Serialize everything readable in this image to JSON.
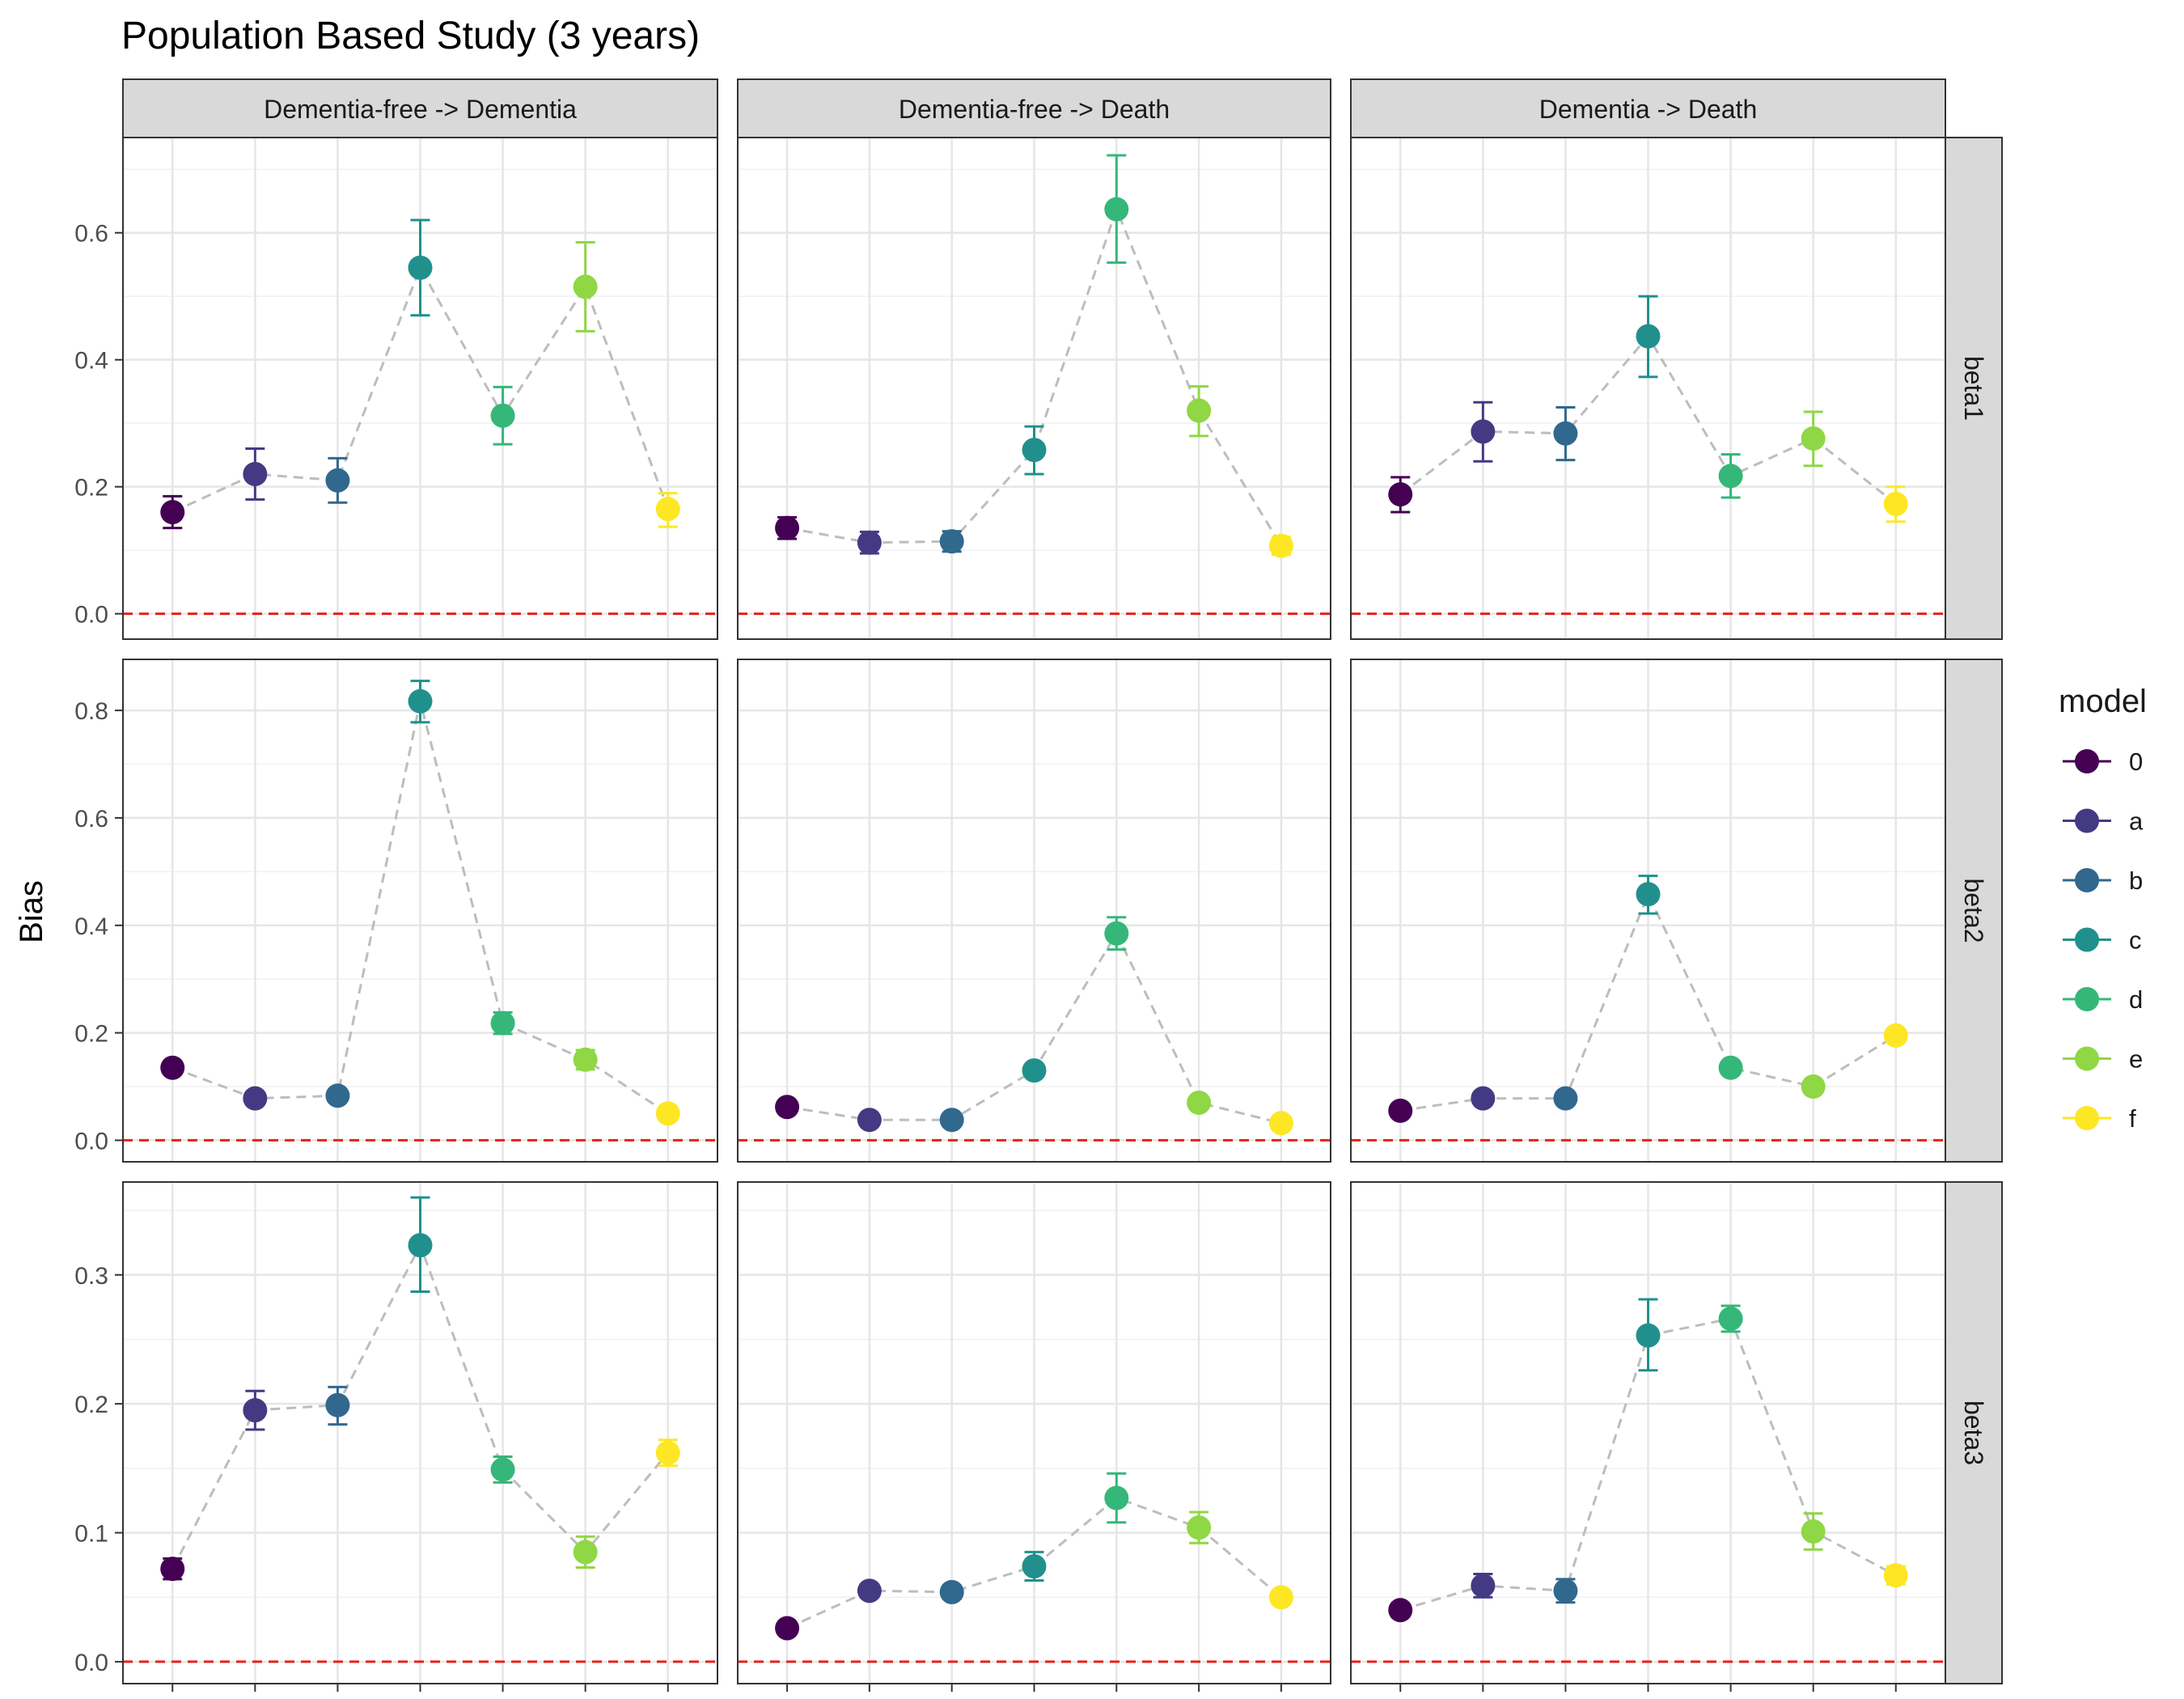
{
  "chart_data": {
    "type": "scatter",
    "title": "Population Based Study (3 years)",
    "ylabel": "Bias",
    "xlabel": "",
    "grid": true,
    "legend_position": "right",
    "legend": {
      "title": "model",
      "entries": [
        "0",
        "a",
        "b",
        "c",
        "d",
        "e",
        "f"
      ]
    },
    "models": [
      "0",
      "a",
      "b",
      "c",
      "d",
      "e",
      "f"
    ],
    "model_colors": {
      "0": "#440154",
      "a": "#443A83",
      "b": "#31688E",
      "c": "#21908C",
      "d": "#35B779",
      "e": "#8FD744",
      "f": "#FDE725"
    },
    "columns": [
      "Dementia-free -> Dementia",
      "Dementia-free -> Death",
      "Dementia -> Death"
    ],
    "rows": [
      {
        "label": "beta1",
        "ylim": [
          -0.04,
          0.75
        ],
        "yticks": [
          0.0,
          0.2,
          0.4,
          0.6
        ],
        "ytick_labels": [
          "0.0",
          "0.2",
          "0.4",
          "0.6"
        ],
        "panels": [
          {
            "values": [
              0.16,
              0.22,
              0.21,
              0.545,
              0.312,
              0.515,
              0.165
            ],
            "lower": [
              0.135,
              0.18,
              0.175,
              0.47,
              0.267,
              0.445,
              0.137
            ],
            "upper": [
              0.185,
              0.26,
              0.245,
              0.62,
              0.357,
              0.585,
              0.19
            ]
          },
          {
            "values": [
              0.135,
              0.112,
              0.114,
              0.258,
              0.637,
              0.32,
              0.107
            ],
            "lower": [
              0.118,
              0.095,
              0.098,
              0.22,
              0.553,
              0.28,
              0.093
            ],
            "upper": [
              0.152,
              0.129,
              0.13,
              0.295,
              0.722,
              0.358,
              0.121
            ]
          },
          {
            "values": [
              0.188,
              0.287,
              0.284,
              0.437,
              0.217,
              0.276,
              0.173
            ],
            "lower": [
              0.16,
              0.24,
              0.242,
              0.373,
              0.183,
              0.233,
              0.145
            ],
            "upper": [
              0.215,
              0.333,
              0.325,
              0.5,
              0.251,
              0.318,
              0.2
            ]
          }
        ]
      },
      {
        "label": "beta2",
        "ylim": [
          -0.04,
          0.895
        ],
        "yticks": [
          0.0,
          0.2,
          0.4,
          0.6,
          0.8
        ],
        "ytick_labels": [
          "0.0",
          "0.2",
          "0.4",
          "0.6",
          "0.8"
        ],
        "panels": [
          {
            "values": [
              0.135,
              0.078,
              0.083,
              0.817,
              0.218,
              0.15,
              0.05
            ],
            "lower": [
              0.125,
              0.068,
              0.073,
              0.778,
              0.198,
              0.132,
              0.04
            ],
            "upper": [
              0.145,
              0.088,
              0.093,
              0.855,
              0.238,
              0.168,
              0.06
            ]
          },
          {
            "values": [
              0.062,
              0.038,
              0.038,
              0.13,
              0.385,
              0.07,
              0.032
            ],
            "lower": [
              0.055,
              0.031,
              0.031,
              0.12,
              0.355,
              0.062,
              0.025
            ],
            "upper": [
              0.069,
              0.045,
              0.045,
              0.14,
              0.415,
              0.078,
              0.039
            ]
          },
          {
            "values": [
              0.055,
              0.078,
              0.078,
              0.458,
              0.135,
              0.1,
              0.195
            ],
            "lower": [
              0.047,
              0.07,
              0.07,
              0.422,
              0.125,
              0.09,
              0.185
            ],
            "upper": [
              0.063,
              0.086,
              0.086,
              0.492,
              0.145,
              0.11,
              0.205
            ]
          }
        ]
      },
      {
        "label": "beta3",
        "ylim": [
          -0.017,
          0.372
        ],
        "yticks": [
          0.0,
          0.1,
          0.2,
          0.3
        ],
        "ytick_labels": [
          "0.0",
          "0.1",
          "0.2",
          "0.3"
        ],
        "panels": [
          {
            "values": [
              0.072,
              0.195,
              0.199,
              0.323,
              0.149,
              0.085,
              0.162
            ],
            "lower": [
              0.064,
              0.18,
              0.184,
              0.287,
              0.139,
              0.073,
              0.152
            ],
            "upper": [
              0.08,
              0.21,
              0.213,
              0.36,
              0.159,
              0.097,
              0.172
            ]
          },
          {
            "values": [
              0.026,
              0.055,
              0.054,
              0.074,
              0.127,
              0.104,
              0.05
            ],
            "lower": [
              0.022,
              0.05,
              0.049,
              0.063,
              0.108,
              0.092,
              0.045
            ],
            "upper": [
              0.03,
              0.06,
              0.059,
              0.085,
              0.146,
              0.116,
              0.055
            ]
          },
          {
            "values": [
              0.04,
              0.059,
              0.055,
              0.253,
              0.266,
              0.101,
              0.067
            ],
            "lower": [
              0.035,
              0.05,
              0.046,
              0.226,
              0.256,
              0.087,
              0.06
            ],
            "upper": [
              0.045,
              0.068,
              0.064,
              0.281,
              0.276,
              0.115,
              0.074
            ]
          }
        ]
      }
    ],
    "reference_line": {
      "y": 0.0,
      "color": "#e8201a",
      "style": "dashed"
    },
    "connector_color": "#bdbdbd"
  }
}
